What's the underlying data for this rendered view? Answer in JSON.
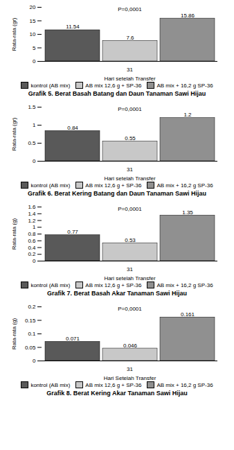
{
  "chart_data": [
    {
      "type": "bar",
      "title": "Grafik 5. Berat Basah Batang dan Daun Tanaman Sawi Hijau",
      "xlabel": "Hari setelah Transfer",
      "ylabel": "Rata-rata (gr)",
      "categories": [
        "31"
      ],
      "series": [
        {
          "name": "kontrol (AB mix)",
          "color": "#595959",
          "values": [
            11.54
          ]
        },
        {
          "name": "AB mix 12,6 g + SP-36",
          "color": "#c8c8c8",
          "values": [
            7.6
          ]
        },
        {
          "name": "AB mix + 16,2 g SP-36",
          "color": "#909090",
          "values": [
            15.86
          ]
        }
      ],
      "annotations": [
        "P=0,0001"
      ],
      "ylim": [
        0,
        20
      ],
      "yticks": [
        0,
        5,
        10,
        15,
        20
      ],
      "data_labels": true,
      "legend": "bottom"
    },
    {
      "type": "bar",
      "title": "Grafik 6. Berat Kering Batang dan Daun Tanaman Sawi Hijau",
      "xlabel": "Hari setelah Transfer",
      "ylabel": "Rata-rata (gr)",
      "categories": [
        "31"
      ],
      "series": [
        {
          "name": "kontrol (AB mix)",
          "color": "#595959",
          "values": [
            0.84
          ]
        },
        {
          "name": "AB mix 12,6 g + SP-36",
          "color": "#c8c8c8",
          "values": [
            0.55
          ]
        },
        {
          "name": "AB mix + 16,2 g SP-36",
          "color": "#909090",
          "values": [
            1.2
          ]
        }
      ],
      "annotations": [
        "P=0,0001"
      ],
      "ylim": [
        0,
        1.5
      ],
      "yticks": [
        0,
        0.5,
        1,
        1.5
      ],
      "data_labels": true,
      "legend": "bottom"
    },
    {
      "type": "bar",
      "title": "Grafik 7. Berat Basah Akar Tanaman Sawi Hijau",
      "xlabel": "Hari setelah Transfer",
      "ylabel": "Rata-rata (g)",
      "categories": [
        "31"
      ],
      "series": [
        {
          "name": "kontrol (AB mix)",
          "color": "#595959",
          "values": [
            0.77
          ]
        },
        {
          "name": "AB mix 12,6 g + SP-36",
          "color": "#c8c8c8",
          "values": [
            0.53
          ]
        },
        {
          "name": "AB mix + 16,2 g SP-36",
          "color": "#909090",
          "values": [
            1.35
          ]
        }
      ],
      "annotations": [
        "P=0,0001"
      ],
      "ylim": [
        0,
        1.6
      ],
      "yticks": [
        0,
        0.2,
        0.4,
        0.6,
        0.8,
        1,
        1.2,
        1.4,
        1.6
      ],
      "data_labels": true,
      "legend": "bottom"
    },
    {
      "type": "bar",
      "title": "Grafik 8. Berat Kering Akar Tanaman Sawi Hijau",
      "xlabel": "Hari Setelah Transfer",
      "ylabel": "Rata-rata (g)",
      "categories": [
        "31"
      ],
      "series": [
        {
          "name": "kontrol (AB mix)",
          "color": "#595959",
          "values": [
            0.071
          ]
        },
        {
          "name": "AB mix 12,6 g + SP-36",
          "color": "#c8c8c8",
          "values": [
            0.046
          ]
        },
        {
          "name": "AB mix + 16,2 g SP-36",
          "color": "#909090",
          "values": [
            0.161
          ]
        }
      ],
      "annotations": [
        "P=0,0001"
      ],
      "ylim": [
        0,
        0.2
      ],
      "yticks": [
        0,
        0.05,
        0.1,
        0.15,
        0.2
      ],
      "data_labels": true,
      "legend": "bottom"
    }
  ]
}
